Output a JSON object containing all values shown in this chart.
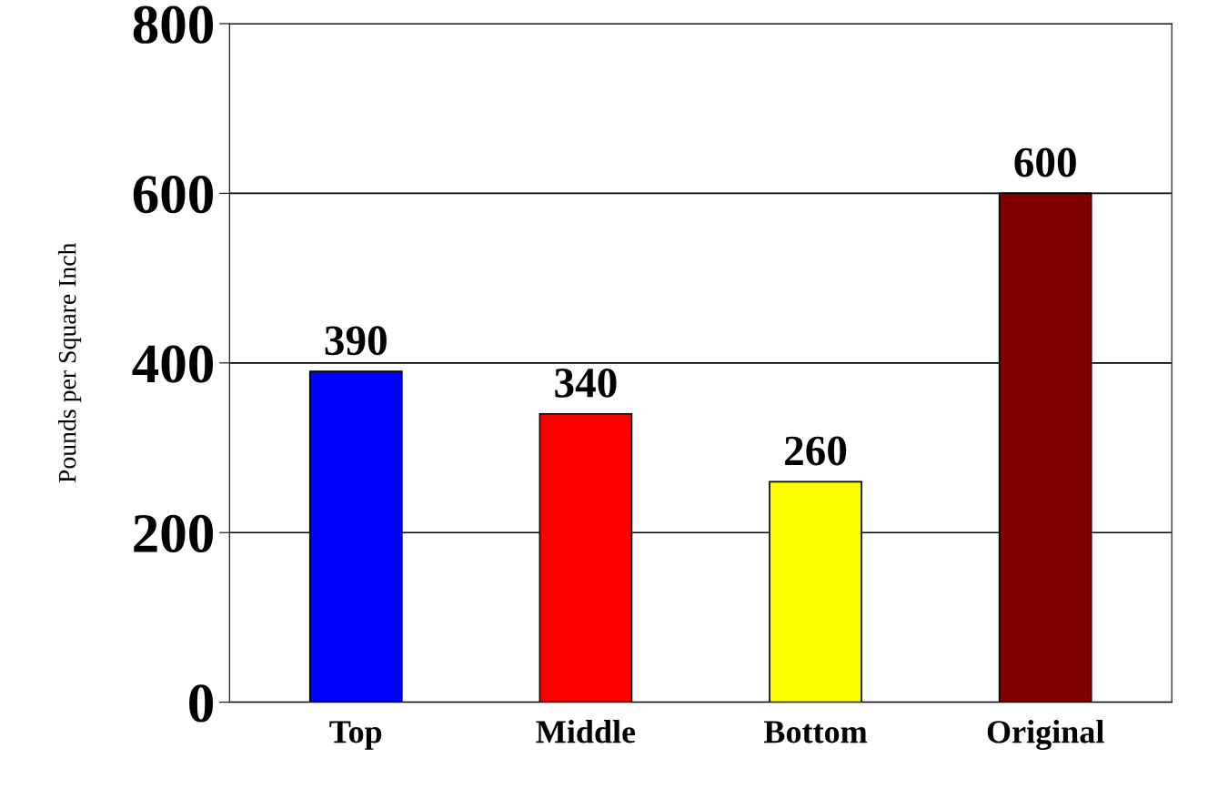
{
  "chart_data": {
    "type": "bar",
    "ylabel": "Pounds per Square Inch",
    "categories": [
      "Top",
      "Middle",
      "Bottom",
      "Original"
    ],
    "values": [
      390,
      340,
      260,
      600
    ],
    "colors": [
      "#0000ff",
      "#ff0000",
      "#ffff00",
      "#800000"
    ],
    "ylim": [
      0,
      800
    ],
    "yticks": [
      0,
      200,
      400,
      600,
      800
    ],
    "grid": "y",
    "data_labels": true,
    "legend": false
  }
}
